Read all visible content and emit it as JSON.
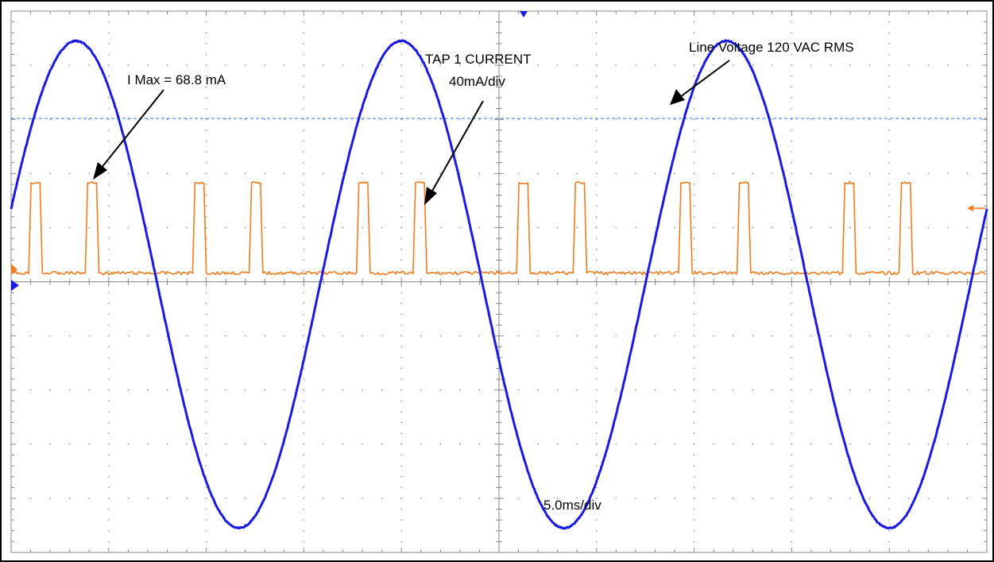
{
  "chart_data": {
    "type": "line",
    "title": "",
    "xlabel": "",
    "ylabel": "",
    "x_unit": "ms",
    "time_per_div": 5.0,
    "x_divisions": 10,
    "y_divisions": 10,
    "grid": true,
    "voltage_scale_divs": {
      "amplitude": 4.5,
      "period_ms": 16.6667,
      "phase_ms": 3.33,
      "offset": -0.05
    },
    "series": [
      {
        "name": "Line Voltage 120 VAC RMS",
        "color": "#1a1ae0",
        "kind": "sine",
        "x": [
          0,
          2.5,
          5,
          7.5,
          10,
          12.5,
          15,
          17.5,
          20,
          22.5,
          25,
          27.5,
          30,
          32.5,
          35,
          37.5,
          40,
          42.5,
          45,
          47.5,
          50
        ],
        "y": [
          3.85,
          1.52,
          -2.13,
          -4.22,
          -3.37,
          -0.38,
          2.96,
          4.48,
          2.69,
          -0.8,
          -3.8,
          -4.15,
          -1.39,
          2.25,
          4.43,
          3.51,
          0.38,
          -2.82,
          -4.48,
          -2.69,
          0.8
        ]
      },
      {
        "name": "TAP 1 CURRENT",
        "color": "#f07c1e",
        "kind": "pulses",
        "scale": "40mA/div",
        "peak_mA": 68.8,
        "baseline_mA": 0,
        "pulses_ms": [
          [
            0.9,
            1.6
          ],
          [
            3.8,
            4.5
          ],
          [
            9.3,
            10.0
          ],
          [
            12.2,
            12.9
          ],
          [
            17.7,
            18.4
          ],
          [
            20.6,
            21.3
          ],
          [
            25.9,
            26.6
          ],
          [
            28.8,
            29.5
          ],
          [
            34.2,
            34.9
          ],
          [
            37.2,
            37.9
          ],
          [
            42.6,
            43.3
          ],
          [
            45.5,
            46.2
          ]
        ]
      }
    ],
    "annotations": {
      "imax": "I Max = 68.8 mA",
      "tap_title": "TAP 1 CURRENT",
      "tap_scale": "40mA/div",
      "line_voltage": "Line Voltage 120 VAC RMS",
      "timebase": "5.0ms/div"
    },
    "colors": {
      "voltage": "#1a1ae0",
      "current": "#f07c1e",
      "reference_line": "#3b6ee8",
      "grid_dots": "#9a9a9a",
      "axis": "#8a8a8a"
    }
  }
}
